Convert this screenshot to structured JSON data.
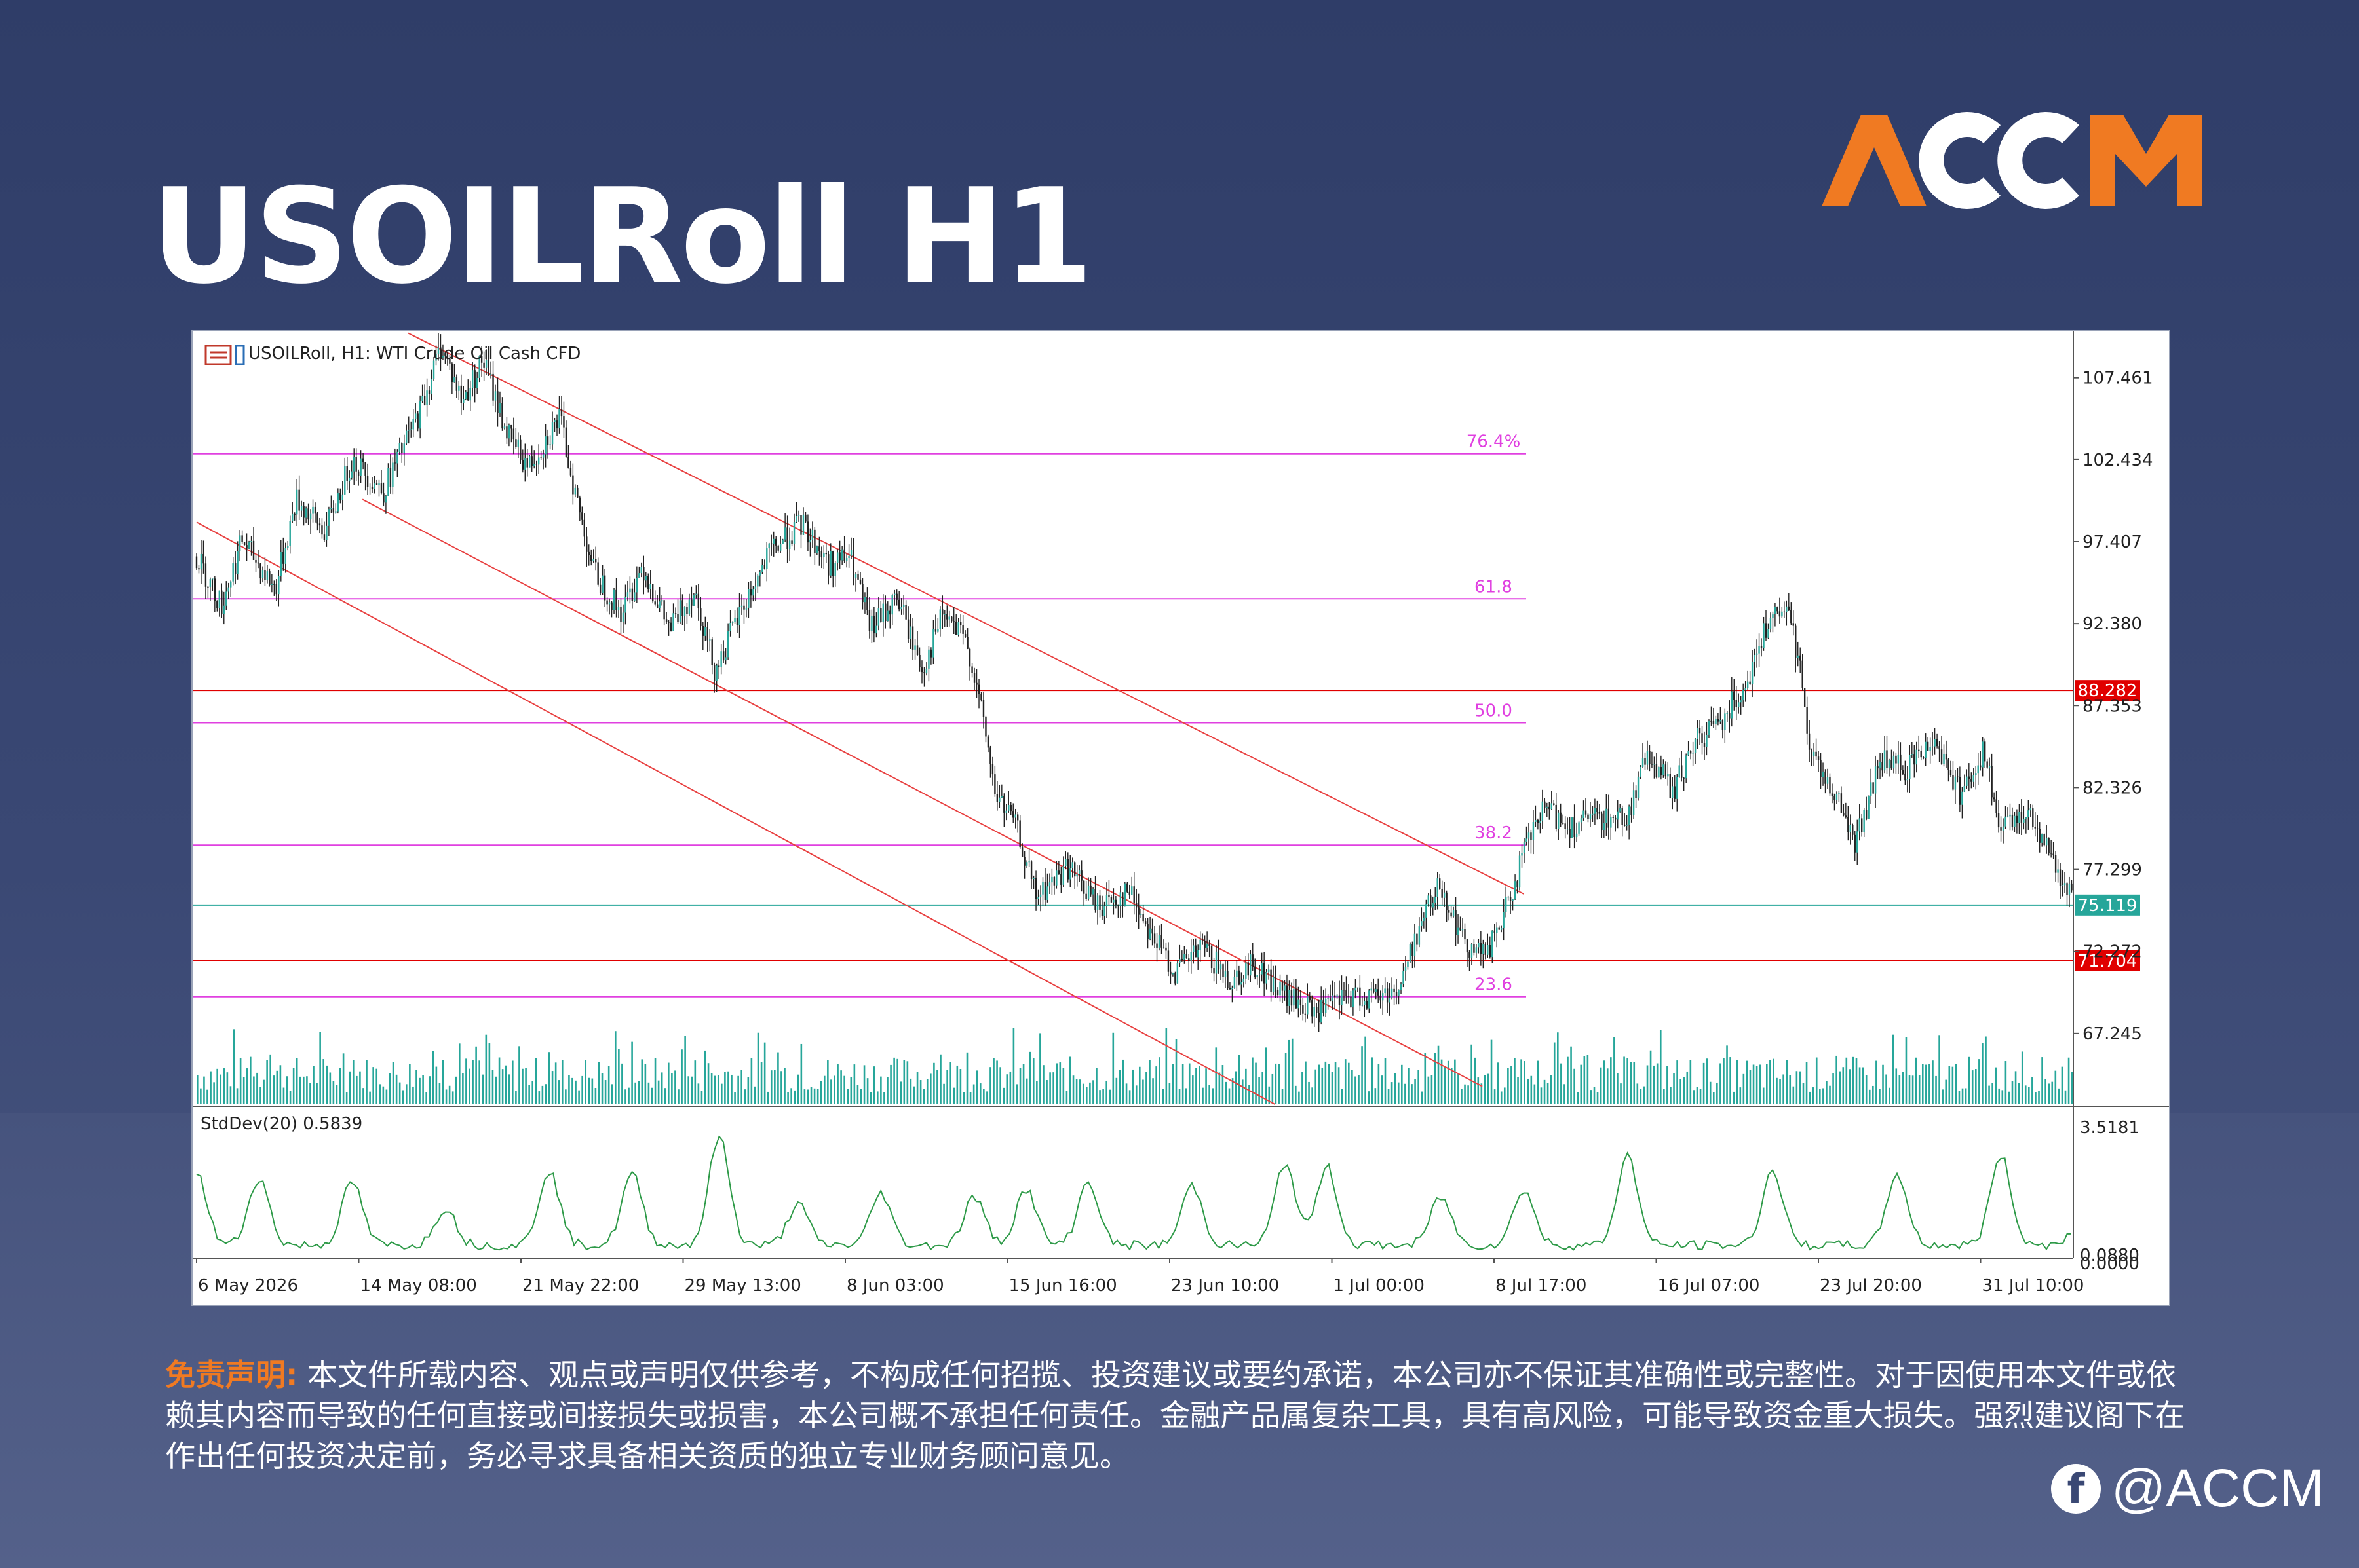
{
  "page": {
    "title": "USOILRoll H1",
    "logo_text": "ACCM",
    "disclaimer_lead": "免责声明:",
    "disclaimer_body": "本文件所载内容、观点或声明仅供参考，不构成任何招揽、投资建议或要约承诺，本公司亦不保证其准确性或完整性。对于因使用本文件或依赖其内容而导致的任何直接或间接损失或损害，本公司概不承担任何责任。金融产品属复杂工具，具有高风险，可能导致资金重大损失。强烈建议阁下在作出任何投资决定前，务必寻求具备相关资质的独立专业财务顾问意见。",
    "social_handle": "@ACCM",
    "social_icon": "facebook-icon",
    "colors": {
      "accent_orange": "#f07a22",
      "bg_navy": "#34426e"
    }
  },
  "chart_data": {
    "type": "line",
    "header": "USOILRoll, H1:  WTI Crude Oil Cash CFD",
    "y_ticks": [
      "107.461",
      "102.434",
      "97.407",
      "92.380",
      "87.353",
      "82.326",
      "77.299",
      "72.272",
      "67.245"
    ],
    "y_tick_values": [
      107.461,
      102.434,
      97.407,
      92.38,
      87.353,
      82.326,
      77.299,
      72.272,
      67.245
    ],
    "ylim": [
      62.9,
      109.9
    ],
    "x_ticks": [
      "6 May 2026",
      "14 May 08:00",
      "21 May 22:00",
      "29 May 13:00",
      "8 Jun 03:00",
      "15 Jun 16:00",
      "23 Jun 10:00",
      "1 Jul 00:00",
      "8 Jul 17:00",
      "16 Jul 07:00",
      "23 Jul 20:00",
      "31 Jul 10:00"
    ],
    "price_path": [
      [
        0,
        96.5
      ],
      [
        12,
        93.5
      ],
      [
        22,
        97.5
      ],
      [
        38,
        94.5
      ],
      [
        48,
        100
      ],
      [
        62,
        98
      ],
      [
        75,
        102.5
      ],
      [
        90,
        100.5
      ],
      [
        108,
        105.5
      ],
      [
        118,
        109.5
      ],
      [
        128,
        106
      ],
      [
        138,
        108.6
      ],
      [
        150,
        104
      ],
      [
        160,
        102
      ],
      [
        175,
        105
      ],
      [
        185,
        99
      ],
      [
        192,
        95.5
      ],
      [
        205,
        93
      ],
      [
        215,
        96
      ],
      [
        228,
        92
      ],
      [
        240,
        94.5
      ],
      [
        250,
        89.5
      ],
      [
        262,
        93
      ],
      [
        278,
        97
      ],
      [
        292,
        98.5
      ],
      [
        305,
        96
      ],
      [
        315,
        96.5
      ],
      [
        325,
        92
      ],
      [
        338,
        94
      ],
      [
        350,
        89.5
      ],
      [
        360,
        93
      ],
      [
        372,
        91
      ],
      [
        380,
        86
      ],
      [
        385,
        82
      ],
      [
        395,
        80
      ],
      [
        405,
        75.5
      ],
      [
        420,
        77.5
      ],
      [
        435,
        75
      ],
      [
        450,
        76
      ],
      [
        460,
        73.5
      ],
      [
        472,
        71
      ],
      [
        485,
        72.5
      ],
      [
        498,
        70.5
      ],
      [
        510,
        71.5
      ],
      [
        525,
        69.5
      ],
      [
        540,
        68.5
      ],
      [
        555,
        69.5
      ],
      [
        568,
        69.5
      ],
      [
        580,
        70
      ],
      [
        590,
        74
      ],
      [
        600,
        76.5
      ],
      [
        610,
        73
      ],
      [
        622,
        72
      ],
      [
        632,
        75
      ],
      [
        642,
        79
      ],
      [
        650,
        81
      ],
      [
        662,
        80
      ],
      [
        678,
        80.5
      ],
      [
        690,
        80.5
      ],
      [
        700,
        84.5
      ],
      [
        712,
        82
      ],
      [
        722,
        85
      ],
      [
        735,
        86.5
      ],
      [
        748,
        89
      ],
      [
        758,
        92.5
      ],
      [
        768,
        93
      ],
      [
        775,
        88.5
      ],
      [
        778,
        84.5
      ],
      [
        788,
        82.5
      ],
      [
        800,
        79
      ],
      [
        812,
        84
      ],
      [
        825,
        83.5
      ],
      [
        838,
        85.5
      ],
      [
        850,
        82
      ],
      [
        862,
        84.5
      ],
      [
        870,
        79.5
      ],
      [
        882,
        81
      ],
      [
        890,
        79.5
      ],
      [
        898,
        77
      ],
      [
        905,
        75.2
      ]
    ],
    "price_path_units": "bar index (0-905) vs price",
    "horizontal_levels": [
      {
        "label": "88.282",
        "value": 88.282,
        "color": "#e00000",
        "tag": true
      },
      {
        "label": "75.119",
        "value": 75.119,
        "color": "#26a69a",
        "tag": true
      },
      {
        "label": "71.704",
        "value": 71.704,
        "color": "#e00000",
        "tag": true
      }
    ],
    "fibonacci": [
      {
        "label": "76.4%",
        "value": 102.8
      },
      {
        "label": "61.8",
        "value": 93.9
      },
      {
        "label": "50.0",
        "value": 86.3
      },
      {
        "label": "38.2",
        "value": 78.8
      },
      {
        "label": "23.6",
        "value": 69.5
      }
    ],
    "fib_color": "#e040e0",
    "channel_lines": [
      {
        "from": [
          102,
          110.2
        ],
        "to": [
          640,
          75.8
        ]
      },
      {
        "from": [
          80,
          100.0
        ],
        "to": [
          620,
          64.0
        ]
      },
      {
        "from": [
          0,
          98.6
        ],
        "to": [
          520,
          62.9
        ]
      }
    ],
    "channel_color": "#e84040",
    "volume_color": "#26a69a",
    "indicator": {
      "label": "StdDev(20) 0.5839",
      "y_ticks": [
        "3.5181",
        "0.0880",
        "0.0000"
      ],
      "y_tick_values": [
        3.5181,
        0.088,
        0.0
      ],
      "ylim": [
        0.0,
        3.5181
      ],
      "color": "#2e9a48",
      "peaks": [
        [
          0,
          2.2
        ],
        [
          30,
          2.1
        ],
        [
          75,
          2.0
        ],
        [
          120,
          1.3
        ],
        [
          170,
          2.3
        ],
        [
          210,
          2.2
        ],
        [
          252,
          3.2
        ],
        [
          290,
          1.4
        ],
        [
          330,
          1.7
        ],
        [
          375,
          1.6
        ],
        [
          400,
          1.8
        ],
        [
          430,
          2.0
        ],
        [
          480,
          1.9
        ],
        [
          525,
          2.5
        ],
        [
          545,
          2.4
        ],
        [
          600,
          1.6
        ],
        [
          640,
          1.8
        ],
        [
          690,
          2.7
        ],
        [
          760,
          2.3
        ],
        [
          820,
          2.2
        ],
        [
          870,
          2.7
        ],
        [
          905,
          0.58
        ]
      ]
    }
  }
}
